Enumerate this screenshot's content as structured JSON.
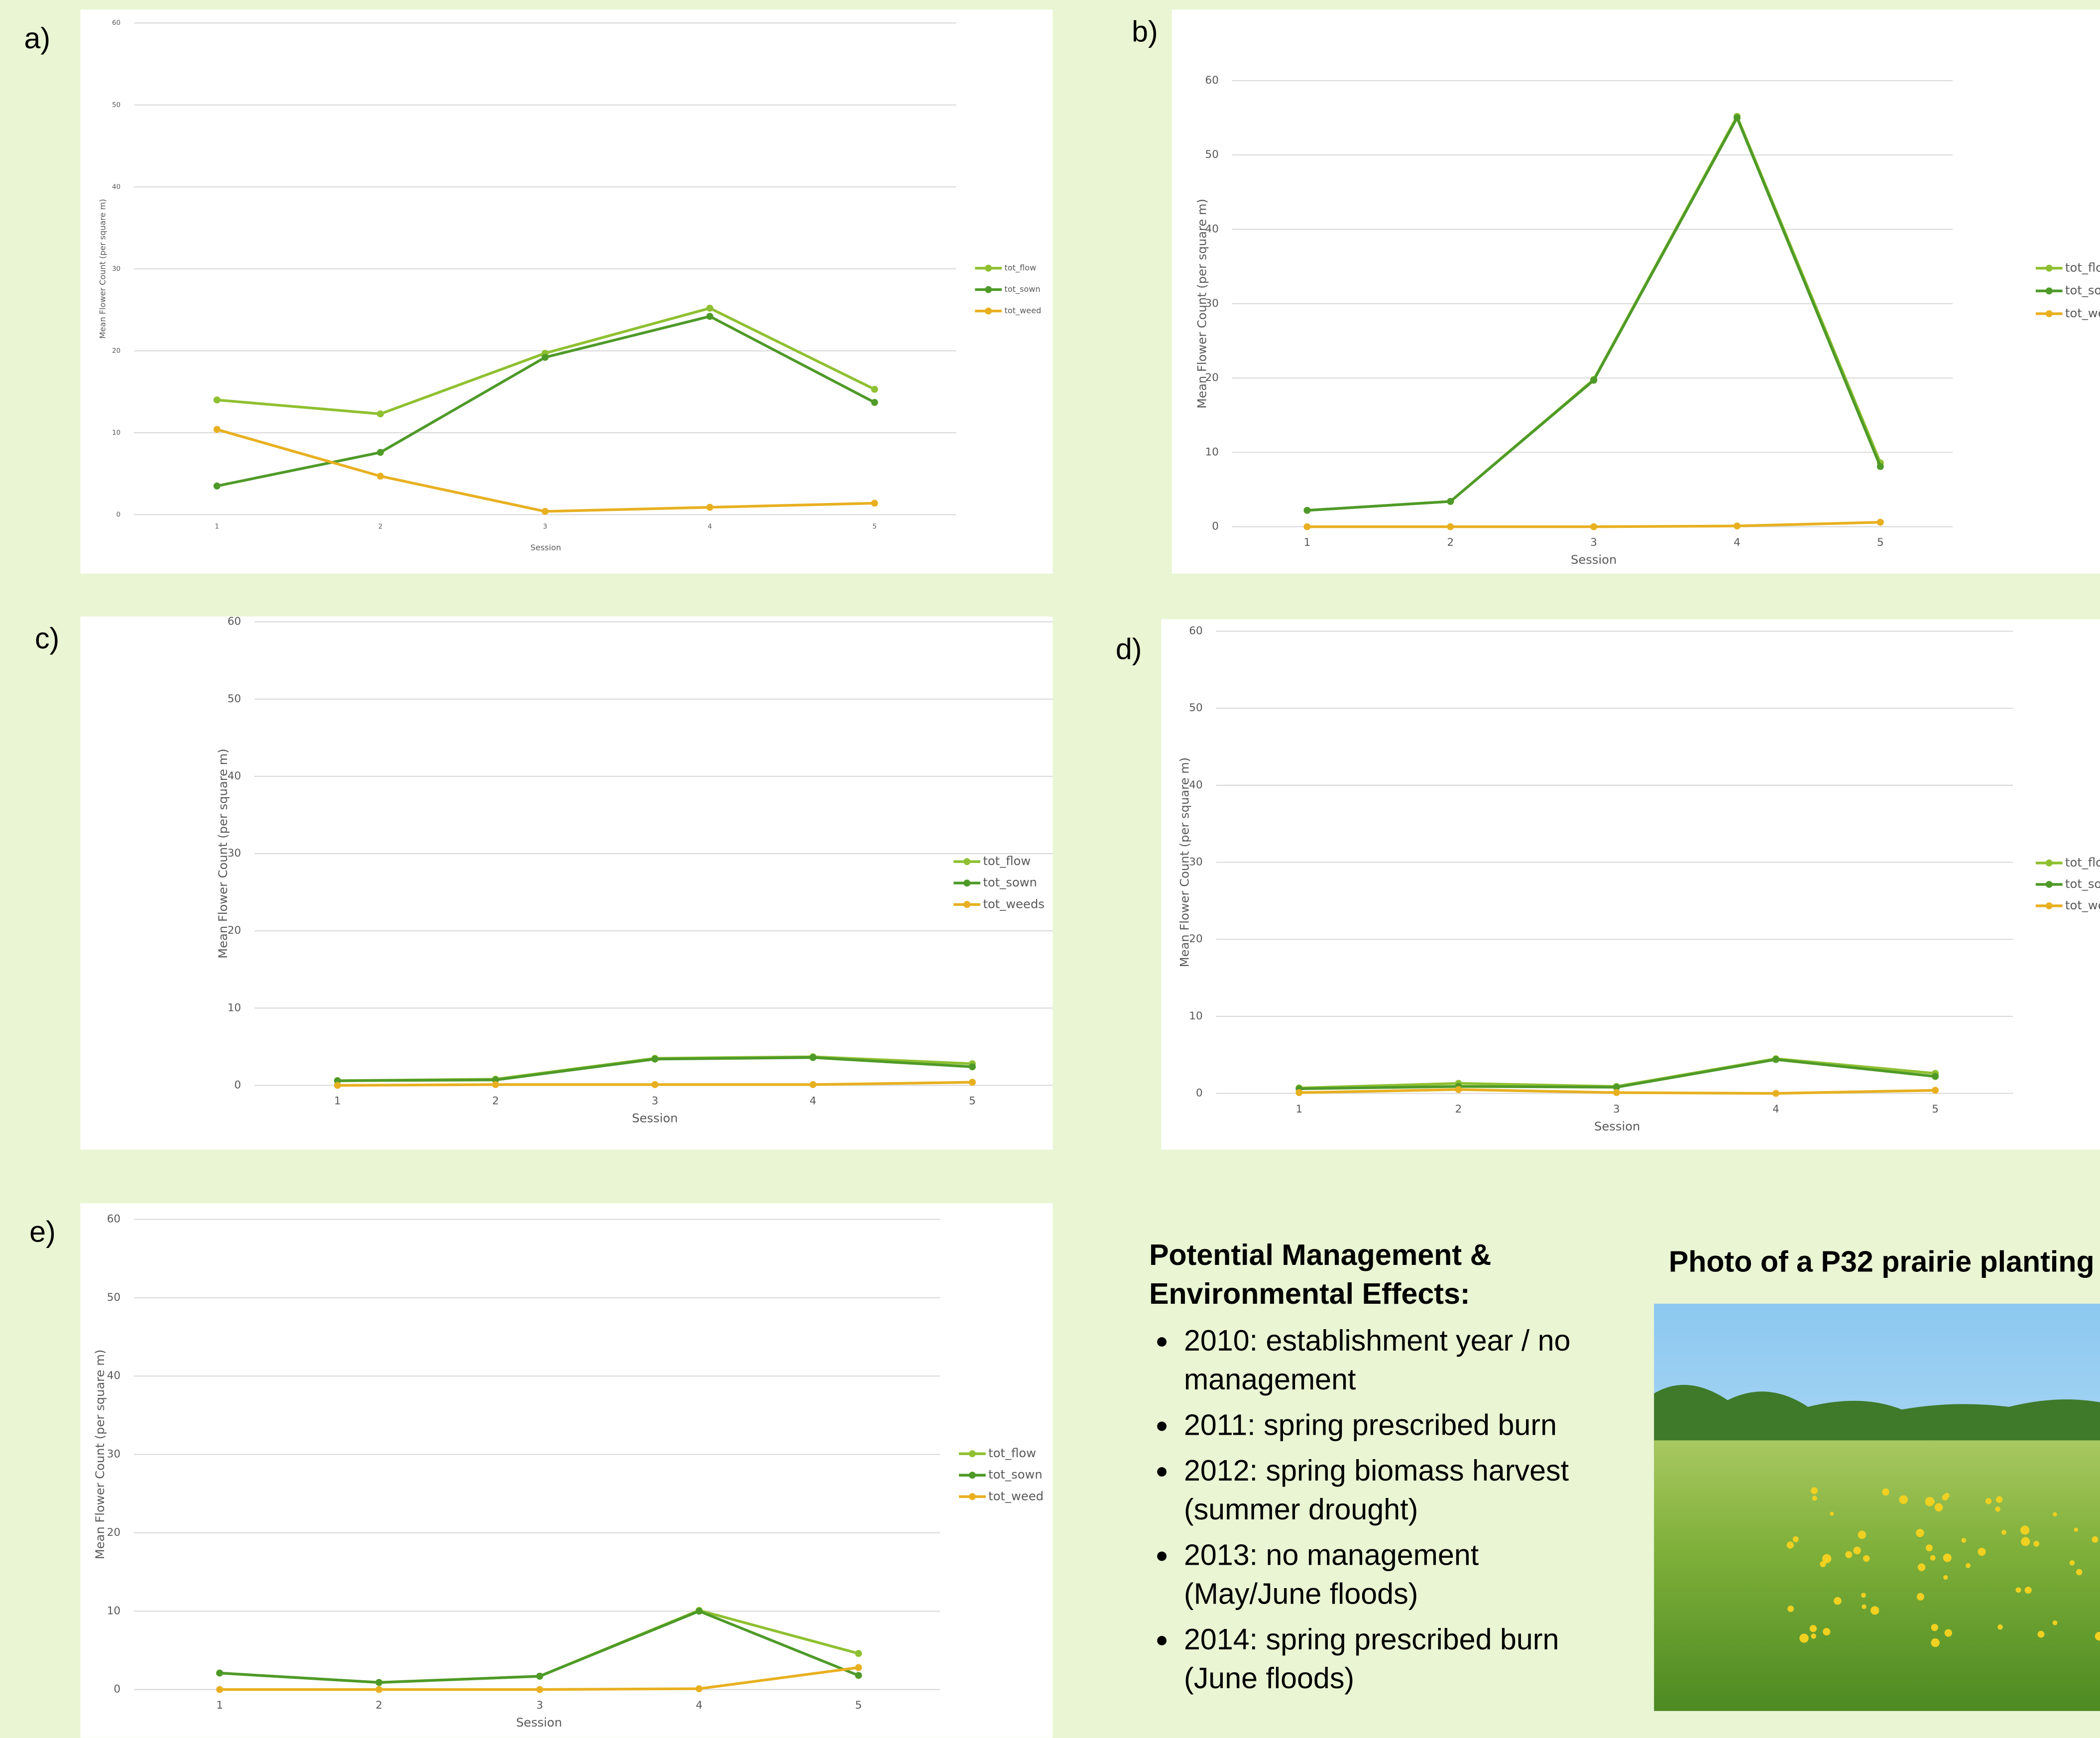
{
  "chart_data": [
    {
      "type": "line",
      "panel_label": "a)",
      "categories": [
        "1",
        "2",
        "3",
        "4",
        "5"
      ],
      "xlabel": "Session",
      "ylabel": "Mean Flower Count (per square m)",
      "ylim": [
        0,
        60
      ],
      "yticks": [
        0,
        10,
        20,
        30,
        40,
        50,
        60
      ],
      "grid": true,
      "series": [
        {
          "name": "tot_flow",
          "color": "#8fc031",
          "values": [
            14,
            12.3,
            19.7,
            25.2,
            15.3
          ]
        },
        {
          "name": "tot_sown",
          "color": "#4e9a28",
          "values": [
            3.5,
            7.6,
            19.2,
            24.2,
            13.7
          ]
        },
        {
          "name": "tot_weed",
          "color": "#e8b020",
          "values": [
            10.4,
            4.7,
            0.4,
            0.9,
            1.4
          ]
        }
      ]
    },
    {
      "type": "line",
      "panel_label": "b)",
      "categories": [
        "1",
        "2",
        "3",
        "4",
        "5"
      ],
      "xlabel": "Session",
      "ylabel": "Mean Flower Count (per square m)",
      "ylim": [
        0,
        60
      ],
      "yticks": [
        0,
        10,
        20,
        30,
        40,
        50,
        60
      ],
      "grid": true,
      "series": [
        {
          "name": "tot_flow",
          "color": "#8fc031",
          "values": [
            2.2,
            3.4,
            19.8,
            55.2,
            8.6
          ]
        },
        {
          "name": "tot_sown",
          "color": "#4e9a28",
          "values": [
            2.2,
            3.4,
            19.7,
            55,
            8.1
          ]
        },
        {
          "name": "tot_weed",
          "color": "#e8b020",
          "values": [
            0,
            0,
            0,
            0.1,
            0.6
          ]
        }
      ]
    },
    {
      "type": "line",
      "panel_label": "c)",
      "categories": [
        "1",
        "2",
        "3",
        "4",
        "5"
      ],
      "xlabel": "Session",
      "ylabel": "Mean Flower Count (per square m)",
      "ylim": [
        0,
        60
      ],
      "yticks": [
        0,
        10,
        20,
        30,
        40,
        50,
        60
      ],
      "grid": true,
      "series": [
        {
          "name": "tot_flow",
          "color": "#8fc031",
          "values": [
            0.6,
            0.8,
            3.5,
            3.7,
            2.8
          ]
        },
        {
          "name": "tot_sown",
          "color": "#4e9a28",
          "values": [
            0.6,
            0.7,
            3.4,
            3.6,
            2.4
          ]
        },
        {
          "name": "tot_weeds",
          "color": "#e8b020",
          "values": [
            0,
            0.1,
            0.1,
            0.1,
            0.4
          ]
        }
      ]
    },
    {
      "type": "line",
      "panel_label": "d)",
      "categories": [
        "1",
        "2",
        "3",
        "4",
        "5"
      ],
      "xlabel": "Session",
      "ylabel": "Mean Flower Count (per square m)",
      "ylim": [
        0,
        60
      ],
      "yticks": [
        0,
        10,
        20,
        30,
        40,
        50,
        60
      ],
      "grid": true,
      "series": [
        {
          "name": "tot_flow",
          "color": "#8fc031",
          "values": [
            0.7,
            1.3,
            0.9,
            4.5,
            2.6
          ]
        },
        {
          "name": "tot_sown",
          "color": "#4e9a28",
          "values": [
            0.6,
            0.9,
            0.8,
            4.4,
            2.2
          ]
        },
        {
          "name": "tot_weed",
          "color": "#e8b020",
          "values": [
            0.1,
            0.5,
            0.1,
            0,
            0.4
          ]
        }
      ]
    },
    {
      "type": "line",
      "panel_label": "e)",
      "categories": [
        "1",
        "2",
        "3",
        "4",
        "5"
      ],
      "xlabel": "Session",
      "ylabel": "Mean Flower Count (per square m)",
      "ylim": [
        0,
        60
      ],
      "yticks": [
        0,
        10,
        20,
        30,
        40,
        50,
        60
      ],
      "grid": true,
      "series": [
        {
          "name": "tot_flow",
          "color": "#8fc031",
          "values": [
            2.1,
            0.9,
            1.7,
            10.1,
            4.6
          ]
        },
        {
          "name": "tot_sown",
          "color": "#4e9a28",
          "values": [
            2.1,
            0.9,
            1.7,
            10,
            1.8
          ]
        },
        {
          "name": "tot_weed",
          "color": "#e8b020",
          "values": [
            0,
            0,
            0,
            0.1,
            2.8
          ]
        }
      ]
    }
  ],
  "notes": {
    "heading": "Potential Management & Environmental Effects:",
    "items": [
      "2010: establishment year / no management",
      "2011: spring prescribed burn",
      "2012: spring biomass harvest (summer drought)",
      "2013: no management (May/June floods)",
      "2014: spring prescribed burn (June floods)"
    ]
  },
  "photo": {
    "title": "Photo of a P32 prairie planting"
  }
}
